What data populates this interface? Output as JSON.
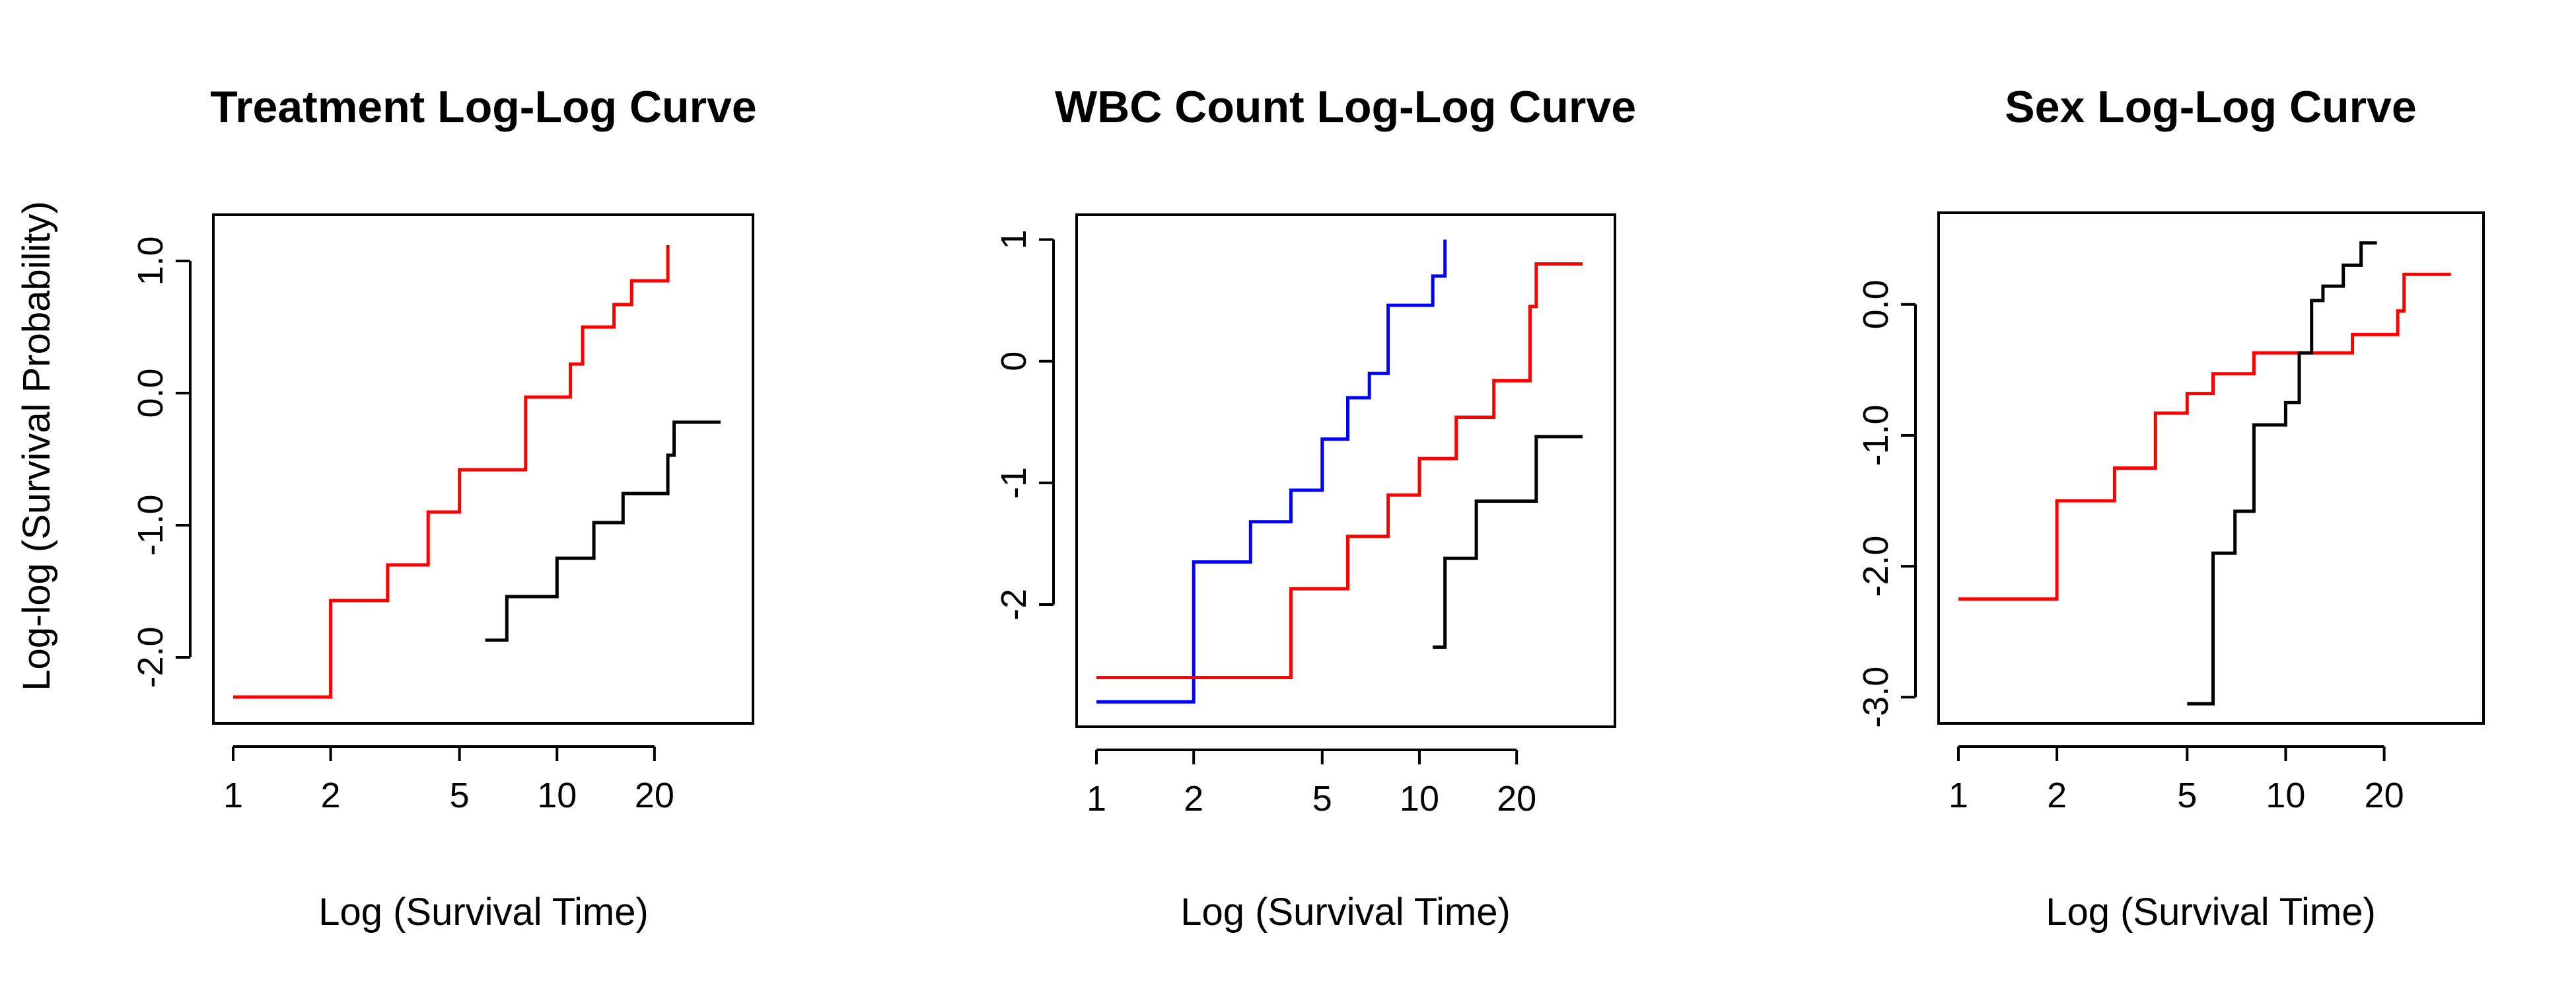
{
  "chart_data": [
    {
      "type": "line",
      "step": true,
      "title": "Treatment Log-Log Curve",
      "xlabel": "Log (Survival Time)",
      "ylabel": "Log-log (Survival Probability)",
      "x_scale": "log",
      "xlim": [
        1,
        35
      ],
      "ylim": [
        -2.45,
        1.3
      ],
      "x_ticks": [
        1,
        2,
        5,
        10,
        20
      ],
      "x_tick_labels": [
        "1",
        "2",
        "5",
        "10",
        "20"
      ],
      "y_ticks": [
        -2.0,
        -1.0,
        0.0,
        1.0
      ],
      "y_tick_labels": [
        "-2.0",
        "-1.0",
        "0.0",
        "1.0"
      ],
      "series": [
        {
          "color": "#ff0000",
          "x": [
            1,
            2,
            3,
            4,
            5,
            8,
            11,
            12,
            15,
            17,
            22,
            22
          ],
          "y": [
            -2.3,
            -1.57,
            -1.3,
            -0.9,
            -0.58,
            -0.03,
            0.22,
            0.5,
            0.67,
            0.85,
            0.85,
            1.12
          ]
        },
        {
          "color": "#000000",
          "x": [
            6,
            7,
            10,
            13,
            16,
            22,
            23,
            32
          ],
          "y": [
            -1.87,
            -1.54,
            -1.25,
            -0.98,
            -0.76,
            -0.47,
            -0.22,
            -0.22
          ]
        }
      ]
    },
    {
      "type": "line",
      "step": true,
      "title": "WBC Count Log-Log Curve",
      "xlabel": "Log (Survival Time)",
      "ylabel": "",
      "x_scale": "log",
      "xlim": [
        1,
        35
      ],
      "ylim": [
        -2.95,
        1.15
      ],
      "x_ticks": [
        1,
        2,
        5,
        10,
        20
      ],
      "x_tick_labels": [
        "1",
        "2",
        "5",
        "10",
        "20"
      ],
      "y_ticks": [
        -2,
        -1,
        0,
        1
      ],
      "y_tick_labels": [
        "-2",
        "-1",
        "0",
        "1"
      ],
      "series": [
        {
          "color": "#0000ff",
          "x": [
            1,
            2,
            3,
            4,
            5,
            6,
            7,
            8,
            11,
            12,
            12
          ],
          "y": [
            -2.8,
            -1.65,
            -1.32,
            -1.06,
            -0.64,
            -0.3,
            -0.1,
            0.46,
            0.7,
            0.7,
            1.0
          ]
        },
        {
          "color": "#ff0000",
          "x": [
            1,
            4,
            6,
            8,
            10,
            13,
            17,
            22,
            23,
            32
          ],
          "y": [
            -2.6,
            -1.87,
            -1.44,
            -1.1,
            -0.8,
            -0.46,
            -0.16,
            0.45,
            0.8,
            0.8
          ]
        },
        {
          "color": "#000000",
          "x": [
            11,
            12,
            15,
            23,
            32
          ],
          "y": [
            -2.35,
            -1.62,
            -1.15,
            -0.62,
            -0.62
          ]
        }
      ]
    },
    {
      "type": "line",
      "step": true,
      "title": "Sex Log-Log Curve",
      "xlabel": "Log (Survival Time)",
      "ylabel": "",
      "x_scale": "log",
      "xlim": [
        1,
        35
      ],
      "ylim": [
        -3.15,
        0.65
      ],
      "x_ticks": [
        1,
        2,
        5,
        10,
        20
      ],
      "x_tick_labels": [
        "1",
        "2",
        "5",
        "10",
        "20"
      ],
      "y_ticks": [
        -3.0,
        -2.0,
        -1.0,
        0.0
      ],
      "y_tick_labels": [
        "-3.0",
        "-2.0",
        "-1.0",
        "0.0"
      ],
      "series": [
        {
          "color": "#ff0000",
          "x": [
            1,
            2,
            3,
            4,
            5,
            6,
            8,
            10,
            16,
            22,
            23,
            32
          ],
          "y": [
            -2.25,
            -1.5,
            -1.25,
            -0.83,
            -0.68,
            -0.53,
            -0.37,
            -0.37,
            -0.23,
            -0.05,
            0.23,
            0.23
          ]
        },
        {
          "color": "#000000",
          "x": [
            5,
            6,
            7,
            8,
            10,
            11,
            12,
            13,
            15,
            17,
            19
          ],
          "y": [
            -3.05,
            -1.9,
            -1.58,
            -0.92,
            -0.75,
            -0.37,
            0.03,
            0.14,
            0.3,
            0.47,
            0.47
          ]
        }
      ]
    }
  ]
}
